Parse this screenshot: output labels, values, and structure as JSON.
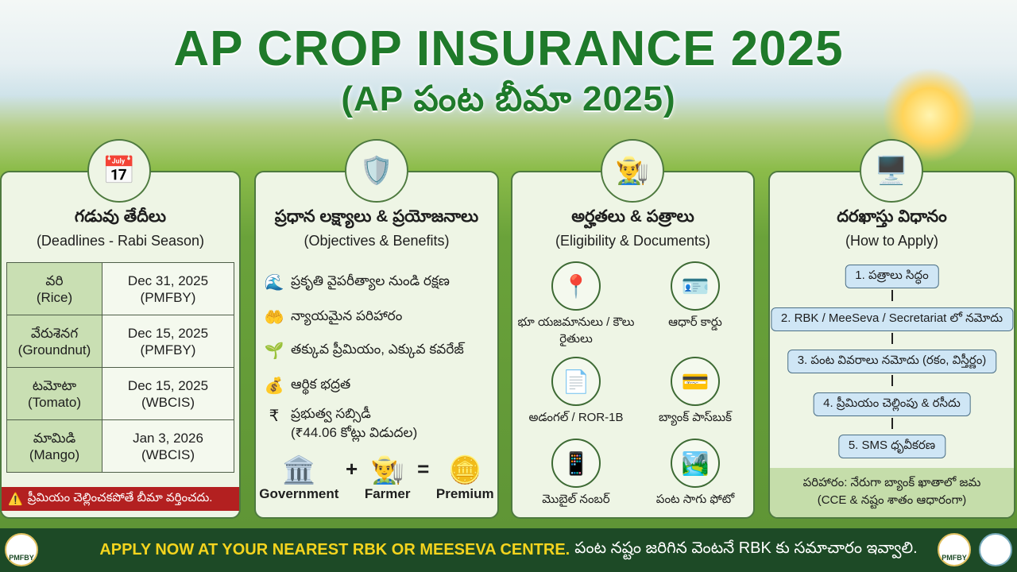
{
  "header": {
    "title": "AP CROP INSURANCE 2025",
    "subtitle": "(AP పంట బీమా 2025)"
  },
  "deadlines": {
    "title": "గడువు తేదీలు",
    "subtitle": "(Deadlines - Rabi Season)",
    "icon": "calendar-icon",
    "rows": [
      {
        "crop_te": "వరి",
        "crop_en": "(Rice)",
        "date": "Dec 31, 2025",
        "scheme": "(PMFBY)"
      },
      {
        "crop_te": "వేరుశెనగ",
        "crop_en": "(Groundnut)",
        "date": "Dec 15, 2025",
        "scheme": "(PMFBY)"
      },
      {
        "crop_te": "టమోటా",
        "crop_en": "(Tomato)",
        "date": "Dec 15, 2025",
        "scheme": "(WBCIS)"
      },
      {
        "crop_te": "మామిడి",
        "crop_en": "(Mango)",
        "date": "Jan 3, 2026",
        "scheme": "(WBCIS)"
      }
    ],
    "warning": "ప్రీమియం చెల్లించకపోతే బీమా వర్తించదు."
  },
  "objectives": {
    "title": "ప్రధాన లక్ష్యాలు & ప్రయోజనాలు",
    "subtitle": "(Objectives & Benefits)",
    "icon": "shield-check-icon",
    "items": [
      "ప్రకృతి వైపరీత్యాల నుండి రక్షణ",
      "న్యాయమైన పరిహారం",
      "తక్కువ ప్రీమియం, ఎక్కువ కవరేజ్",
      "ఆర్థిక భద్రత",
      "ప్రభుత్వ సబ్సిడీ"
    ],
    "subsidy_note": "(₹44.06 కోట్లు విడుదల)",
    "equation": {
      "a": "Government",
      "b": "Farmer",
      "c": "Premium"
    }
  },
  "eligibility": {
    "title": "అర్హతలు & పత్రాలు",
    "subtitle": "(Eligibility & Documents)",
    "icon": "farmer-document-icon",
    "docs": [
      "భూ యజమానులు / కౌలు రైతులు",
      "ఆధార్ కార్డు",
      "అడంగల్ / ROR-1B",
      "బ్యాంక్ పాస్‌బుక్",
      "మొబైల్ నంబర్",
      "పంట సాగు ఫోటో"
    ]
  },
  "apply": {
    "title": "దరఖాస్తు విధానం",
    "subtitle": "(How to Apply)",
    "icon": "computer-office-icon",
    "steps": [
      "1. పత్రాలు సిద్ధం",
      "2. RBK / MeeSeva / Secretariat లో నమోదు",
      "3. పంట వివరాలు నమోదు (రకం, విస్తీర్ణం)",
      "4. ప్రీమియం చెల్లింపు & రసీదు",
      "5. SMS ధృవీకరణ"
    ],
    "compensation": "పరిహారం: నేరుగా బ్యాంక్ ఖాతాలో జమ",
    "compensation_note": "(CCE & నష్టం శాతం ఆధారంగా)"
  },
  "footer": {
    "cta": "APPLY NOW AT YOUR NEAREST RBK OR MEESEVA CENTRE.",
    "note": "పంట నష్టం జరిగిన వెంటనే RBK కు సమాచారం ఇవ్వాలి.",
    "logo": "PMFBY"
  },
  "colors": {
    "title_green": "#1f7a2a",
    "footer_bg": "#1d4a26",
    "footer_text": "#f4d41e",
    "warning_red": "#b32020"
  }
}
